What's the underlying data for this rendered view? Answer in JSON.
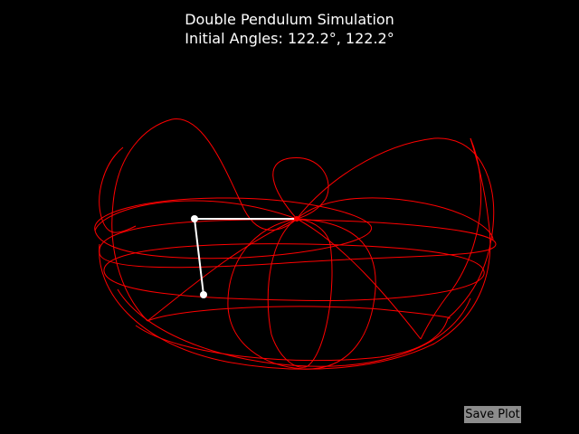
{
  "window": {
    "title_line1": "Double Pendulum Simulation",
    "title_line2": "Initial Angles: 122.2°, 122.2°"
  },
  "toolbar": {
    "save_label": "Save Plot"
  },
  "colors": {
    "background": "#000000",
    "trace": "#ff0000",
    "pendulum": "#ffffff",
    "button": "#8c8c8c"
  }
}
